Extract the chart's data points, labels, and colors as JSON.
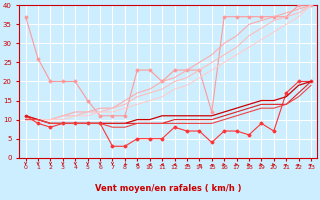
{
  "background_color": "#cceeff",
  "grid_color": "#ffffff",
  "xlabel": "Vent moyen/en rafales ( km/h )",
  "x": [
    0,
    1,
    2,
    3,
    4,
    5,
    6,
    7,
    8,
    9,
    10,
    11,
    12,
    13,
    14,
    15,
    16,
    17,
    18,
    19,
    20,
    21,
    22,
    23
  ],
  "ylim": [
    0,
    40
  ],
  "xlim": [
    -0.5,
    23.5
  ],
  "yticks": [
    0,
    5,
    10,
    15,
    20,
    25,
    30,
    35,
    40
  ],
  "line1": [
    37,
    26,
    20,
    20,
    20,
    15,
    11,
    11,
    11,
    23,
    23,
    20,
    23,
    23,
    23,
    12,
    37,
    37,
    37,
    37,
    37,
    37,
    40,
    40
  ],
  "line1_color": "#ff9999",
  "line2": [
    10,
    10,
    10,
    11,
    12,
    12,
    13,
    13,
    15,
    17,
    18,
    20,
    21,
    23,
    25,
    27,
    30,
    32,
    35,
    36,
    37,
    38,
    39,
    40
  ],
  "line2_color": "#ffaaaa",
  "line3": [
    10,
    10,
    10,
    11,
    11,
    12,
    12,
    13,
    14,
    16,
    17,
    18,
    20,
    21,
    23,
    25,
    27,
    29,
    32,
    34,
    36,
    37,
    38,
    40
  ],
  "line3_color": "#ffbbbb",
  "line4": [
    10,
    10,
    10,
    10,
    11,
    11,
    12,
    12,
    13,
    14,
    15,
    16,
    18,
    19,
    21,
    23,
    25,
    27,
    29,
    31,
    33,
    35,
    37,
    40
  ],
  "line4_color": "#ffcccc",
  "line5": [
    11,
    9,
    8,
    9,
    9,
    9,
    9,
    3,
    3,
    5,
    5,
    5,
    8,
    7,
    7,
    4,
    7,
    7,
    6,
    9,
    7,
    17,
    20,
    20
  ],
  "line5_color": "#ff3333",
  "line6": [
    11,
    10,
    9,
    9,
    9,
    9,
    9,
    9,
    9,
    10,
    10,
    11,
    11,
    11,
    11,
    11,
    12,
    13,
    14,
    15,
    15,
    16,
    19,
    20
  ],
  "line6_color": "#cc0000",
  "line7": [
    11,
    10,
    9,
    9,
    9,
    9,
    9,
    9,
    9,
    9,
    9,
    9,
    10,
    10,
    10,
    10,
    11,
    12,
    13,
    14,
    14,
    14,
    17,
    20
  ],
  "line7_color": "#dd2222",
  "line8": [
    10,
    10,
    9,
    9,
    9,
    9,
    9,
    8,
    8,
    9,
    9,
    9,
    9,
    9,
    9,
    9,
    10,
    11,
    12,
    13,
    13,
    14,
    16,
    19
  ],
  "line8_color": "#ee4444",
  "arrows": [
    180,
    180,
    180,
    180,
    180,
    180,
    180,
    180,
    225,
    270,
    270,
    270,
    270,
    315,
    315,
    315,
    90,
    90,
    90,
    90,
    90,
    45,
    45,
    45
  ],
  "arrow_color": "#cc0000",
  "xlabel_color": "#cc0000",
  "tick_color": "#cc0000",
  "spine_color": "#cc0000"
}
